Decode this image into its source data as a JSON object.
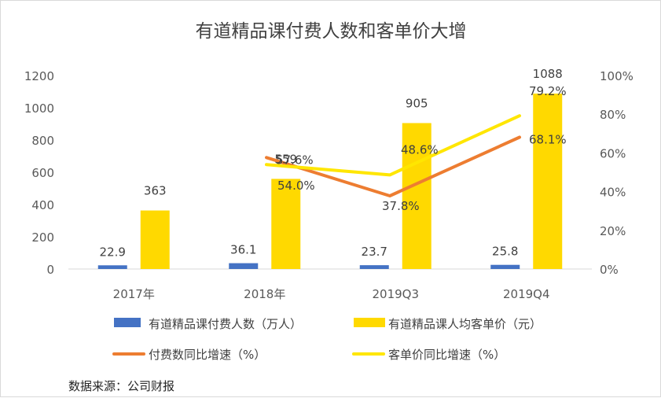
{
  "chart_data": {
    "type": "bar",
    "title": "有道精品课付费人数和客单价大增",
    "categories": [
      "2017年",
      "2018年",
      "2019Q3",
      "2019Q4"
    ],
    "y_left": {
      "min": 0,
      "max": 1200,
      "step": 200,
      "ticks": [
        "0",
        "200",
        "400",
        "600",
        "800",
        "1000",
        "1200"
      ]
    },
    "y_right": {
      "min": 0,
      "max": 100,
      "step": 20,
      "ticks": [
        "0%",
        "20%",
        "40%",
        "60%",
        "80%",
        "100%"
      ]
    },
    "bar_series": [
      {
        "name": "有道精品课付费人数（万人）",
        "color": "#4472c4",
        "axis": "left",
        "values": [
          22.9,
          36.1,
          23.7,
          25.8
        ],
        "labels": [
          "22.9",
          "36.1",
          "23.7",
          "25.8"
        ]
      },
      {
        "name": "有道精品课人均客单价（元）",
        "color": "#ffd900",
        "axis": "left",
        "values": [
          363,
          559,
          905,
          1088
        ],
        "labels": [
          "363",
          "559",
          "905",
          "1088"
        ]
      }
    ],
    "line_series": [
      {
        "name": "付费数同比增速（%）",
        "color": "#ed7d31",
        "axis": "right",
        "values": [
          null,
          57.6,
          37.8,
          68.1
        ],
        "labels": [
          "",
          "57.6%",
          "37.8%",
          "68.1%"
        ]
      },
      {
        "name": "客单价同比增速（%）",
        "color": "#ffe600",
        "axis": "right",
        "values": [
          null,
          54.0,
          48.6,
          79.2
        ],
        "labels": [
          "",
          "54.0%",
          "48.6%",
          "79.2%"
        ]
      }
    ],
    "legend_position": "bottom",
    "grid": false
  },
  "source": "数据来源：公司财报"
}
